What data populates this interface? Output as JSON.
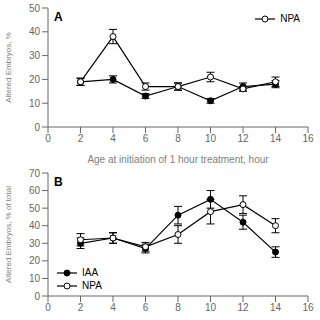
{
  "chart_data": [
    {
      "type": "line",
      "title": "A",
      "xlabel": "Age at initiation of 1 hour treatment, hour",
      "ylabel": "Altered Embryos, %",
      "x": [
        2,
        4,
        6,
        8,
        10,
        12,
        14
      ],
      "xlim": [
        0,
        16
      ],
      "xticks": [
        0,
        2,
        4,
        6,
        8,
        10,
        12,
        14,
        16
      ],
      "ylim": [
        0,
        50
      ],
      "yticks": [
        0,
        10,
        20,
        30,
        40,
        50
      ],
      "legend": "upper right",
      "series": [
        {
          "color": "#000000",
          "marker": "circle_filled",
          "line_style": "solid",
          "values": [
            19,
            20,
            13,
            17,
            11,
            17,
            18
          ],
          "errors": [
            1.5,
            1.5,
            1.0,
            1.5,
            1.0,
            1.5,
            1.5
          ]
        },
        {
          "name": "NPA",
          "color": "#000000",
          "marker": "circle_open",
          "line_style": "solid",
          "values": [
            19,
            38,
            17,
            17,
            21,
            16,
            19
          ],
          "errors": [
            1.5,
            3.0,
            1.5,
            1.5,
            2.0,
            1.0,
            2.0
          ]
        }
      ]
    },
    {
      "type": "line",
      "title": "B",
      "ylabel": "Altered Embryos, % of total",
      "x": [
        2,
        4,
        6,
        8,
        10,
        12,
        14
      ],
      "xlim": [
        0,
        16
      ],
      "xticks": [
        0,
        2,
        4,
        6,
        8,
        10,
        12,
        14,
        16
      ],
      "ylim": [
        0,
        70
      ],
      "yticks": [
        0,
        10,
        20,
        30,
        40,
        50,
        60,
        70
      ],
      "legend": "lower left",
      "series": [
        {
          "name": "IAA",
          "color": "#000000",
          "marker": "circle_filled",
          "line_style": "solid",
          "values": [
            30,
            33,
            27,
            46,
            55,
            42,
            25
          ],
          "errors": [
            3.0,
            3.0,
            2.5,
            5.0,
            5.0,
            4.0,
            3.0
          ]
        },
        {
          "name": "NPA",
          "color": "#000000",
          "marker": "circle_open",
          "line_style": "solid",
          "values": [
            32,
            33,
            28,
            35,
            48,
            52,
            40
          ],
          "errors": [
            3.5,
            3.0,
            2.5,
            5.0,
            7.0,
            5.0,
            4.0
          ]
        }
      ]
    }
  ]
}
